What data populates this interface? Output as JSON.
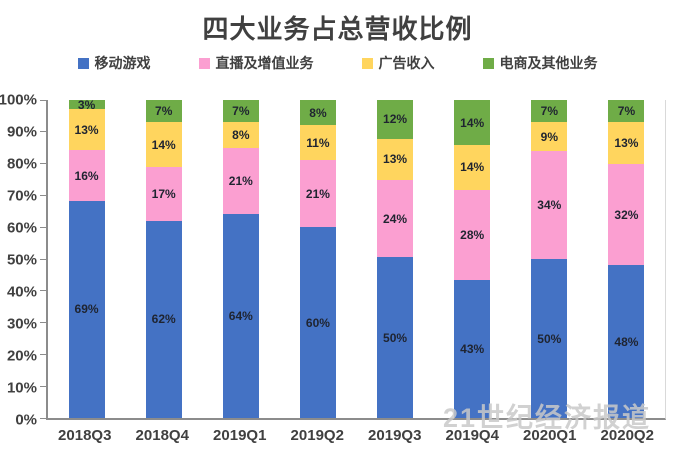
{
  "title": "四大业务占总营收比例",
  "watermark": {
    "text": "21世纪经济报道"
  },
  "colors": {
    "title_text": "#404040",
    "axis_text": "#404040",
    "data_label_text": "#1f2430",
    "axis_line": "#8c8c8c",
    "plot_right_border": "#d9d9d9",
    "watermark_text": "#c9c9c9",
    "series_blue": "#4472C4",
    "series_pink": "#FB9FD1",
    "series_yellow": "#FFD55E",
    "series_green": "#6FAC47"
  },
  "chart_data": {
    "type": "bar",
    "stacked": true,
    "title": "四大业务占总营收比例",
    "xlabel": "",
    "ylabel": "",
    "categories": [
      "2018Q3",
      "2018Q4",
      "2019Q1",
      "2019Q2",
      "2019Q3",
      "2019Q4",
      "2020Q1",
      "2020Q2"
    ],
    "series": [
      {
        "name": "移动游戏",
        "color": "#4472C4",
        "values": [
          69,
          62,
          64,
          60,
          50,
          43,
          50,
          48
        ]
      },
      {
        "name": "直播及增值业务",
        "color": "#FB9FD1",
        "values": [
          16,
          17,
          21,
          21,
          24,
          28,
          34,
          32
        ]
      },
      {
        "name": "广告收入",
        "color": "#FFD55E",
        "values": [
          13,
          14,
          8,
          11,
          13,
          14,
          9,
          13
        ]
      },
      {
        "name": "电商及其他业务",
        "color": "#6FAC47",
        "values": [
          3,
          7,
          7,
          8,
          12,
          14,
          7,
          7
        ]
      }
    ],
    "value_suffix": "%",
    "ylim": [
      0,
      100
    ],
    "yticks": [
      "100%",
      "90%",
      "80%",
      "70%",
      "60%",
      "50%",
      "40%",
      "30%",
      "20%",
      "10%",
      "0%"
    ],
    "grid": false,
    "legend_position": "top"
  }
}
